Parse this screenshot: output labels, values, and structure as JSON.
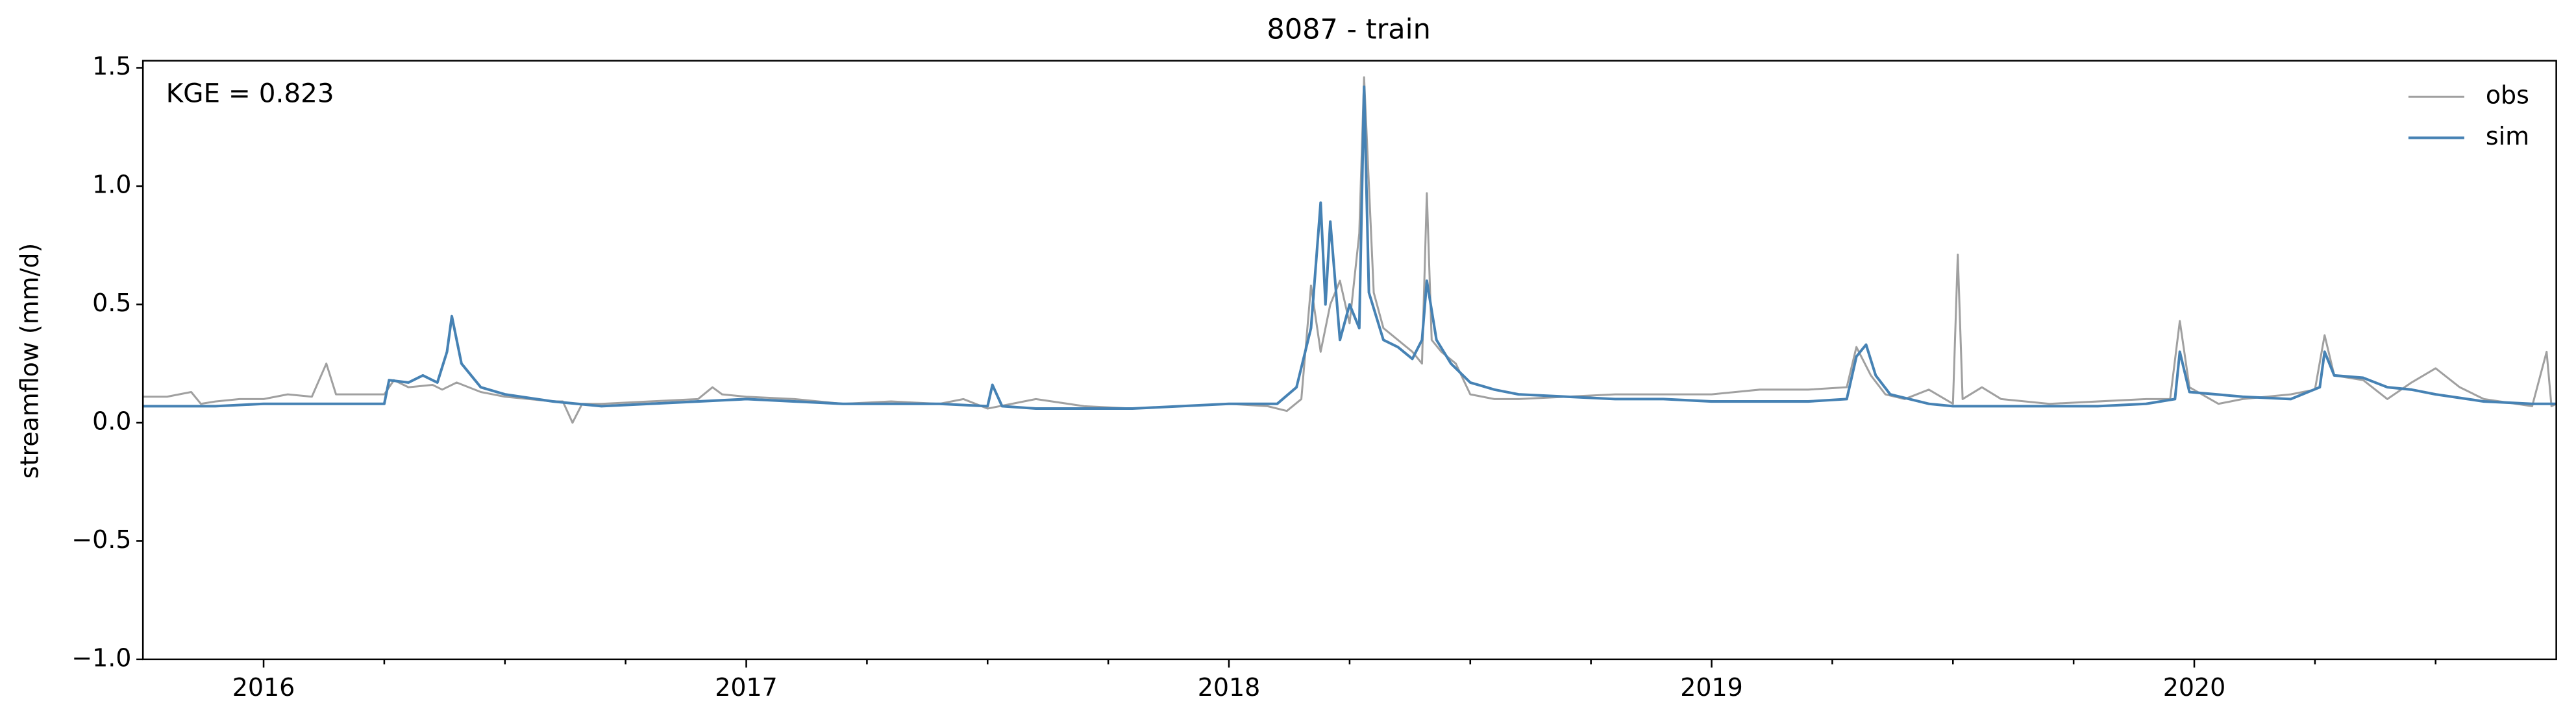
{
  "chart_data": {
    "type": "line",
    "title": "8087 - train",
    "ylabel": "streamflow (mm/d)",
    "annotation": "KGE = 0.823",
    "legend": "upper right",
    "grid": false,
    "xlim": [
      2015.75,
      2020.75
    ],
    "xticks": [
      2016,
      2017,
      2018,
      2019,
      2020
    ],
    "xminorticks": [
      2016.25,
      2016.5,
      2016.75,
      2017.25,
      2017.5,
      2017.75,
      2018.25,
      2018.5,
      2018.75,
      2019.25,
      2019.5,
      2019.75,
      2020.25,
      2020.5
    ],
    "ylim": [
      -1.0,
      1.53
    ],
    "yticks": [
      {
        "value": -1.0,
        "label": "−1.0"
      },
      {
        "value": -0.5,
        "label": "−0.5"
      },
      {
        "value": 0,
        "label": "0.0"
      },
      {
        "value": 0.5,
        "label": "0.5"
      },
      {
        "value": 1.0,
        "label": "1.0"
      },
      {
        "value": 1.5,
        "label": "1.5"
      }
    ],
    "series": [
      {
        "name": "obs",
        "color": "#a0a0a0",
        "width": 1.2,
        "x": [
          2015.75,
          2015.8,
          2015.85,
          2015.87,
          2015.9,
          2015.95,
          2016.0,
          2016.05,
          2016.1,
          2016.13,
          2016.15,
          2016.2,
          2016.25,
          2016.27,
          2016.3,
          2016.35,
          2016.37,
          2016.4,
          2016.45,
          2016.5,
          2016.55,
          2016.6,
          2016.62,
          2016.64,
          2016.66,
          2016.7,
          2016.8,
          2016.9,
          2016.93,
          2016.95,
          2017.0,
          2017.1,
          2017.2,
          2017.3,
          2017.4,
          2017.45,
          2017.5,
          2017.55,
          2017.6,
          2017.7,
          2017.8,
          2017.9,
          2018.0,
          2018.08,
          2018.12,
          2018.15,
          2018.17,
          2018.19,
          2018.21,
          2018.23,
          2018.25,
          2018.27,
          2018.28,
          2018.3,
          2018.32,
          2018.35,
          2018.38,
          2018.4,
          2018.41,
          2018.42,
          2018.44,
          2018.47,
          2018.5,
          2018.55,
          2018.6,
          2018.7,
          2018.8,
          2018.9,
          2019.0,
          2019.1,
          2019.2,
          2019.28,
          2019.3,
          2019.33,
          2019.36,
          2019.4,
          2019.45,
          2019.5,
          2019.51,
          2019.52,
          2019.56,
          2019.6,
          2019.7,
          2019.8,
          2019.9,
          2019.95,
          2019.97,
          2019.99,
          2020.05,
          2020.1,
          2020.2,
          2020.25,
          2020.27,
          2020.29,
          2020.35,
          2020.4,
          2020.45,
          2020.5,
          2020.55,
          2020.6,
          2020.7,
          2020.73,
          2020.74,
          2020.75
        ],
        "values": [
          0.11,
          0.11,
          0.13,
          0.08,
          0.09,
          0.1,
          0.1,
          0.12,
          0.11,
          0.25,
          0.12,
          0.12,
          0.12,
          0.18,
          0.15,
          0.16,
          0.14,
          0.17,
          0.13,
          0.11,
          0.1,
          0.09,
          0.09,
          0.0,
          0.08,
          0.08,
          0.09,
          0.1,
          0.15,
          0.12,
          0.11,
          0.1,
          0.08,
          0.09,
          0.08,
          0.1,
          0.06,
          0.08,
          0.1,
          0.07,
          0.06,
          0.07,
          0.08,
          0.07,
          0.05,
          0.1,
          0.58,
          0.3,
          0.5,
          0.6,
          0.42,
          0.8,
          1.46,
          0.55,
          0.4,
          0.35,
          0.3,
          0.25,
          0.97,
          0.35,
          0.3,
          0.25,
          0.12,
          0.1,
          0.1,
          0.11,
          0.12,
          0.12,
          0.12,
          0.14,
          0.14,
          0.15,
          0.32,
          0.2,
          0.12,
          0.1,
          0.14,
          0.08,
          0.71,
          0.1,
          0.15,
          0.1,
          0.08,
          0.09,
          0.1,
          0.1,
          0.43,
          0.15,
          0.08,
          0.1,
          0.12,
          0.14,
          0.37,
          0.2,
          0.18,
          0.1,
          0.17,
          0.23,
          0.15,
          0.1,
          0.07,
          0.3,
          0.07,
          0.08
        ]
      },
      {
        "name": "sim",
        "color": "#4682b4",
        "width": 1.6,
        "x": [
          2015.75,
          2015.9,
          2016.0,
          2016.1,
          2016.2,
          2016.25,
          2016.26,
          2016.3,
          2016.33,
          2016.36,
          2016.38,
          2016.39,
          2016.41,
          2016.45,
          2016.5,
          2016.6,
          2016.7,
          2016.8,
          2016.9,
          2017.0,
          2017.1,
          2017.2,
          2017.3,
          2017.4,
          2017.5,
          2017.51,
          2017.53,
          2017.6,
          2017.7,
          2017.8,
          2017.9,
          2018.0,
          2018.1,
          2018.14,
          2018.17,
          2018.19,
          2018.2,
          2018.21,
          2018.23,
          2018.25,
          2018.27,
          2018.28,
          2018.29,
          2018.32,
          2018.35,
          2018.38,
          2018.4,
          2018.41,
          2018.43,
          2018.46,
          2018.5,
          2018.55,
          2018.6,
          2018.7,
          2018.8,
          2018.9,
          2019.0,
          2019.1,
          2019.2,
          2019.28,
          2019.3,
          2019.32,
          2019.34,
          2019.37,
          2019.45,
          2019.5,
          2019.6,
          2019.7,
          2019.8,
          2019.9,
          2019.96,
          2019.97,
          2019.99,
          2020.1,
          2020.2,
          2020.26,
          2020.27,
          2020.29,
          2020.35,
          2020.4,
          2020.45,
          2020.5,
          2020.6,
          2020.7,
          2020.75
        ],
        "values": [
          0.07,
          0.07,
          0.08,
          0.08,
          0.08,
          0.08,
          0.18,
          0.17,
          0.2,
          0.17,
          0.3,
          0.45,
          0.25,
          0.15,
          0.12,
          0.09,
          0.07,
          0.08,
          0.09,
          0.1,
          0.09,
          0.08,
          0.08,
          0.08,
          0.07,
          0.16,
          0.07,
          0.06,
          0.06,
          0.06,
          0.07,
          0.08,
          0.08,
          0.15,
          0.4,
          0.93,
          0.5,
          0.85,
          0.35,
          0.5,
          0.4,
          1.42,
          0.55,
          0.35,
          0.32,
          0.27,
          0.35,
          0.6,
          0.35,
          0.25,
          0.17,
          0.14,
          0.12,
          0.11,
          0.1,
          0.1,
          0.09,
          0.09,
          0.09,
          0.1,
          0.28,
          0.33,
          0.2,
          0.12,
          0.08,
          0.07,
          0.07,
          0.07,
          0.07,
          0.08,
          0.1,
          0.3,
          0.13,
          0.11,
          0.1,
          0.15,
          0.3,
          0.2,
          0.19,
          0.15,
          0.14,
          0.12,
          0.09,
          0.08,
          0.08
        ]
      }
    ]
  }
}
